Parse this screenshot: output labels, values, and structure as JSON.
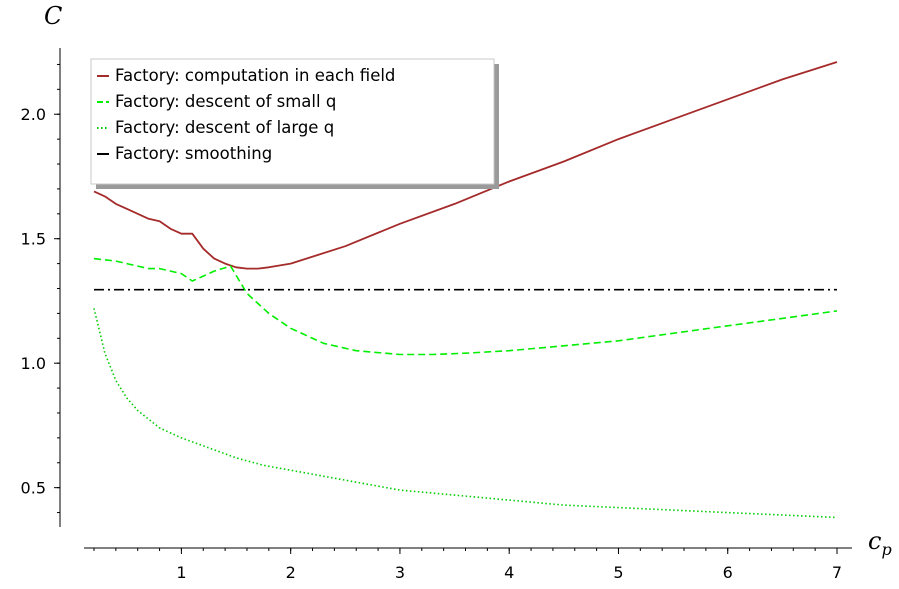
{
  "chart_data": {
    "type": "line",
    "xlabel": "c_p",
    "ylabel": "C",
    "xlim": [
      0.2,
      7.0
    ],
    "ylim": [
      0.35,
      2.25
    ],
    "x_ticks": [
      1,
      2,
      3,
      4,
      5,
      6,
      7
    ],
    "y_ticks": [
      0.5,
      1.0,
      1.5,
      2.0
    ],
    "x_tick_labels": [
      "1",
      "2",
      "3",
      "4",
      "5",
      "6",
      "7"
    ],
    "y_tick_labels": [
      "0.5",
      "1.0",
      "1.5",
      "2.0"
    ],
    "grid": false,
    "legend_position": "top-left",
    "series": [
      {
        "name": "Factory: computation in each field",
        "color": "#a52a2a",
        "style": "solid",
        "x": [
          0.2,
          0.3,
          0.4,
          0.5,
          0.6,
          0.7,
          0.8,
          0.9,
          1.0,
          1.1,
          1.2,
          1.3,
          1.4,
          1.5,
          1.6,
          1.7,
          1.8,
          2.0,
          2.5,
          3.0,
          3.5,
          4.0,
          4.5,
          5.0,
          5.5,
          6.0,
          6.5,
          7.0
        ],
        "y": [
          1.69,
          1.67,
          1.64,
          1.62,
          1.6,
          1.58,
          1.57,
          1.54,
          1.52,
          1.52,
          1.46,
          1.42,
          1.4,
          1.385,
          1.38,
          1.38,
          1.385,
          1.4,
          1.47,
          1.56,
          1.64,
          1.73,
          1.81,
          1.9,
          1.98,
          2.06,
          2.14,
          2.21
        ]
      },
      {
        "name": "Factory: descent of small q",
        "color": "#00ee00",
        "style": "dashed",
        "x": [
          0.2,
          0.4,
          0.6,
          0.7,
          0.8,
          0.9,
          1.0,
          1.1,
          1.2,
          1.3,
          1.45,
          1.6,
          1.8,
          2.0,
          2.3,
          2.6,
          3.0,
          3.3,
          3.6,
          4.0,
          4.5,
          5.0,
          5.5,
          6.0,
          6.5,
          7.0
        ],
        "y": [
          1.42,
          1.41,
          1.39,
          1.38,
          1.38,
          1.37,
          1.36,
          1.33,
          1.35,
          1.37,
          1.39,
          1.28,
          1.2,
          1.14,
          1.08,
          1.05,
          1.035,
          1.035,
          1.04,
          1.05,
          1.07,
          1.09,
          1.12,
          1.15,
          1.18,
          1.21
        ]
      },
      {
        "name": "Factory: descent of large q",
        "color": "#00cc00",
        "style": "dotted",
        "x": [
          0.2,
          0.3,
          0.4,
          0.5,
          0.6,
          0.8,
          1.0,
          1.25,
          1.5,
          1.75,
          2.0,
          2.5,
          3.0,
          3.5,
          4.0,
          4.5,
          5.0,
          5.5,
          6.0,
          6.5,
          7.0
        ],
        "y": [
          1.22,
          1.04,
          0.93,
          0.86,
          0.81,
          0.74,
          0.7,
          0.66,
          0.62,
          0.59,
          0.57,
          0.53,
          0.49,
          0.47,
          0.45,
          0.43,
          0.42,
          0.41,
          0.4,
          0.39,
          0.38
        ]
      },
      {
        "name": "Factory: smoothing",
        "color": "#000000",
        "style": "dashdot",
        "x": [
          0.2,
          7.0
        ],
        "y": [
          1.295,
          1.295
        ]
      }
    ]
  }
}
